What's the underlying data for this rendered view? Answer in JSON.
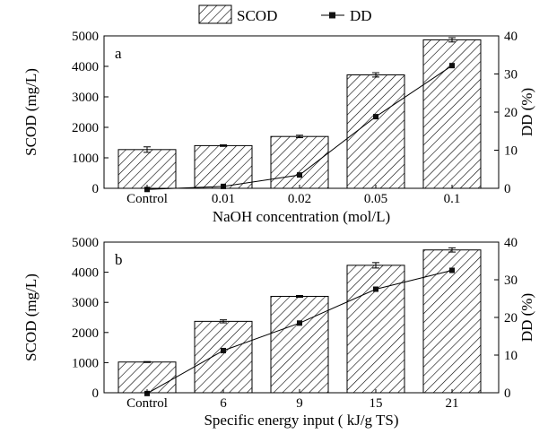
{
  "legend": {
    "bar_label": "SCOD",
    "line_label": "DD"
  },
  "chart_data": [
    {
      "type": "bar",
      "panel_label": "a",
      "categories": [
        "Control",
        "0.01",
        "0.02",
        "0.05",
        "0.1"
      ],
      "xlabel": "NaOH concentration (mol/L)",
      "ylabel": "SCOD (mg/L)",
      "y2label": "DD (%)",
      "ylim": [
        0,
        5000
      ],
      "y2lim": [
        0,
        40
      ],
      "yticks": [
        0,
        1000,
        2000,
        3000,
        4000,
        5000
      ],
      "y2ticks": [
        0,
        10,
        20,
        30,
        40
      ],
      "series": [
        {
          "name": "SCOD",
          "kind": "bar",
          "axis": "left",
          "values": [
            1270,
            1400,
            1700,
            3720,
            4870
          ],
          "errors": [
            90,
            25,
            40,
            70,
            70
          ]
        },
        {
          "name": "DD",
          "kind": "line",
          "axis": "right",
          "values": [
            -0.3,
            0.5,
            3.5,
            18.8,
            32.2
          ]
        }
      ]
    },
    {
      "type": "bar",
      "panel_label": "b",
      "categories": [
        "Control",
        "6",
        "9",
        "15",
        "21"
      ],
      "xlabel": "Specific energy input ( kJ/g TS)",
      "ylabel": "SCOD (mg/L)",
      "y2label": "DD (%)",
      "ylim": [
        0,
        5000
      ],
      "y2lim": [
        0,
        40
      ],
      "yticks": [
        0,
        1000,
        2000,
        3000,
        4000,
        5000
      ],
      "y2ticks": [
        0,
        10,
        20,
        30,
        40
      ],
      "series": [
        {
          "name": "SCOD",
          "kind": "bar",
          "axis": "left",
          "values": [
            1020,
            2370,
            3200,
            4230,
            4740
          ],
          "errors": [
            15,
            50,
            30,
            90,
            70
          ]
        },
        {
          "name": "DD",
          "kind": "line",
          "axis": "right",
          "values": [
            -0.2,
            11.2,
            18.5,
            27.5,
            32.5
          ]
        }
      ]
    }
  ]
}
